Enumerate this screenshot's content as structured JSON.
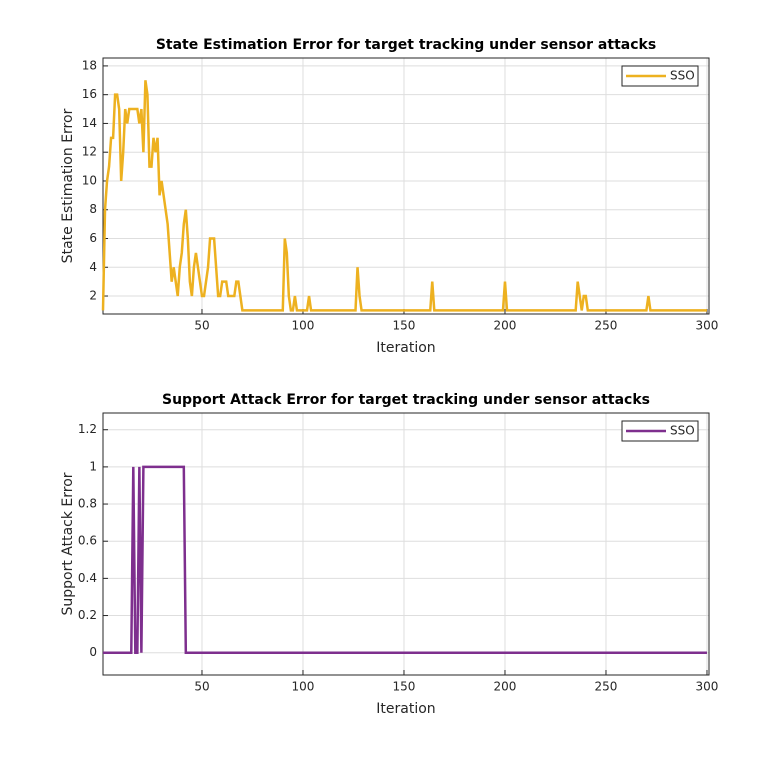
{
  "chart_data": [
    {
      "type": "line",
      "title": "State Estimation Error for target tracking under sensor attacks",
      "x_label": "Iteration",
      "y_label": "State Estimation Error",
      "x": [
        1,
        2,
        3,
        4,
        5,
        6,
        7,
        8,
        9,
        10,
        11,
        12,
        13,
        14,
        15,
        16,
        17,
        18,
        19,
        20,
        21,
        22,
        23,
        24,
        25,
        26,
        27,
        28,
        29,
        30,
        31,
        32,
        33,
        34,
        35,
        36,
        37,
        38,
        39,
        40,
        41,
        42,
        43,
        44,
        45,
        46,
        47,
        48,
        49,
        50,
        51,
        52,
        53,
        54,
        55,
        56,
        57,
        58,
        59,
        60,
        61,
        62,
        63,
        64,
        65,
        66,
        67,
        68,
        69,
        70,
        90,
        91,
        92,
        93,
        94,
        95,
        96,
        97,
        102,
        103,
        104,
        126,
        127,
        128,
        129,
        163,
        164,
        165,
        199,
        200,
        201,
        235,
        236,
        237,
        238,
        239,
        240,
        241,
        270,
        271,
        272,
        300
      ],
      "series": [
        {
          "name": "SSO",
          "color": "#edb120",
          "values": [
            1,
            8,
            10,
            11,
            13,
            13,
            16,
            16,
            15,
            10,
            12,
            15,
            14,
            15,
            15,
            15,
            15,
            15,
            14,
            15,
            12,
            17,
            16,
            11,
            11,
            13,
            12,
            13,
            9,
            10,
            9,
            8,
            7,
            5,
            3,
            4,
            3,
            2,
            4,
            5,
            7,
            8,
            6,
            3,
            2,
            4,
            5,
            4,
            3,
            2,
            2,
            3,
            4,
            6,
            6,
            6,
            4,
            2,
            2,
            3,
            3,
            3,
            2,
            2,
            2,
            2,
            3,
            3,
            2,
            1,
            1,
            6,
            5,
            2,
            1,
            1,
            2,
            1,
            1,
            2,
            1,
            1,
            4,
            2,
            1,
            1,
            3,
            1,
            1,
            3,
            1,
            1,
            3,
            2,
            1,
            2,
            2,
            1,
            1,
            2,
            1,
            1
          ]
        }
      ],
      "xlim": [
        1,
        301
      ],
      "xticks": [
        50,
        100,
        150,
        200,
        250,
        300
      ],
      "ylim": [
        0.75,
        18.55
      ],
      "yticks": [
        2,
        4,
        6,
        8,
        10,
        12,
        14,
        16,
        18
      ],
      "grid": true,
      "legend": "upper right"
    },
    {
      "type": "line",
      "title": "Support Attack Error for target tracking under sensor attacks",
      "x_label": "Iteration",
      "y_label": "Support Attack Error",
      "x": [
        1,
        15,
        16,
        17,
        18,
        19,
        20,
        21,
        22,
        41,
        42,
        300
      ],
      "series": [
        {
          "name": "SSO",
          "color": "#7e2f8e",
          "values": [
            0,
            0,
            1,
            0,
            0,
            1,
            0,
            1,
            1,
            1,
            0,
            0
          ]
        }
      ],
      "xlim": [
        1,
        301
      ],
      "xticks": [
        50,
        100,
        150,
        200,
        250,
        300
      ],
      "ylim": [
        -0.12,
        1.29
      ],
      "yticks": [
        0,
        0.2,
        0.4,
        0.6,
        0.8,
        1,
        1.2
      ],
      "grid": true,
      "legend": "upper right"
    }
  ]
}
